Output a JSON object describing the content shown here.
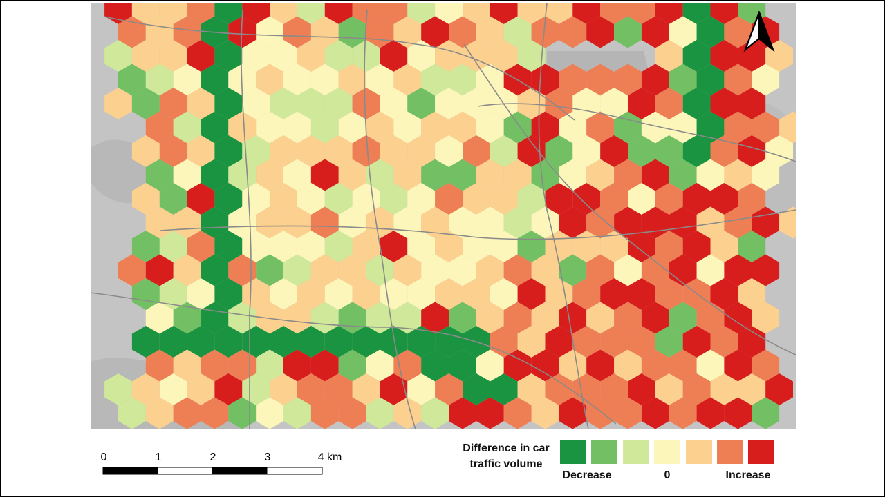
{
  "map": {
    "north_arrow": "north-arrow-icon",
    "colors": {
      "base_background": "#c9c9c9",
      "water": "#b5b5b5",
      "roads": "#8a8a8a",
      "classes": [
        "#1a9440",
        "#72c063",
        "#cfe89a",
        "#fdf6bb",
        "#fcd08e",
        "#ee7e54",
        "#d81d1d"
      ]
    }
  },
  "scale_bar": {
    "ticks": [
      "0",
      "1",
      "2",
      "3",
      "4 km"
    ]
  },
  "legend": {
    "title": "Difference in car traffic volume",
    "labels": {
      "low": "Decrease",
      "mid": "0",
      "high": "Increase"
    }
  }
}
